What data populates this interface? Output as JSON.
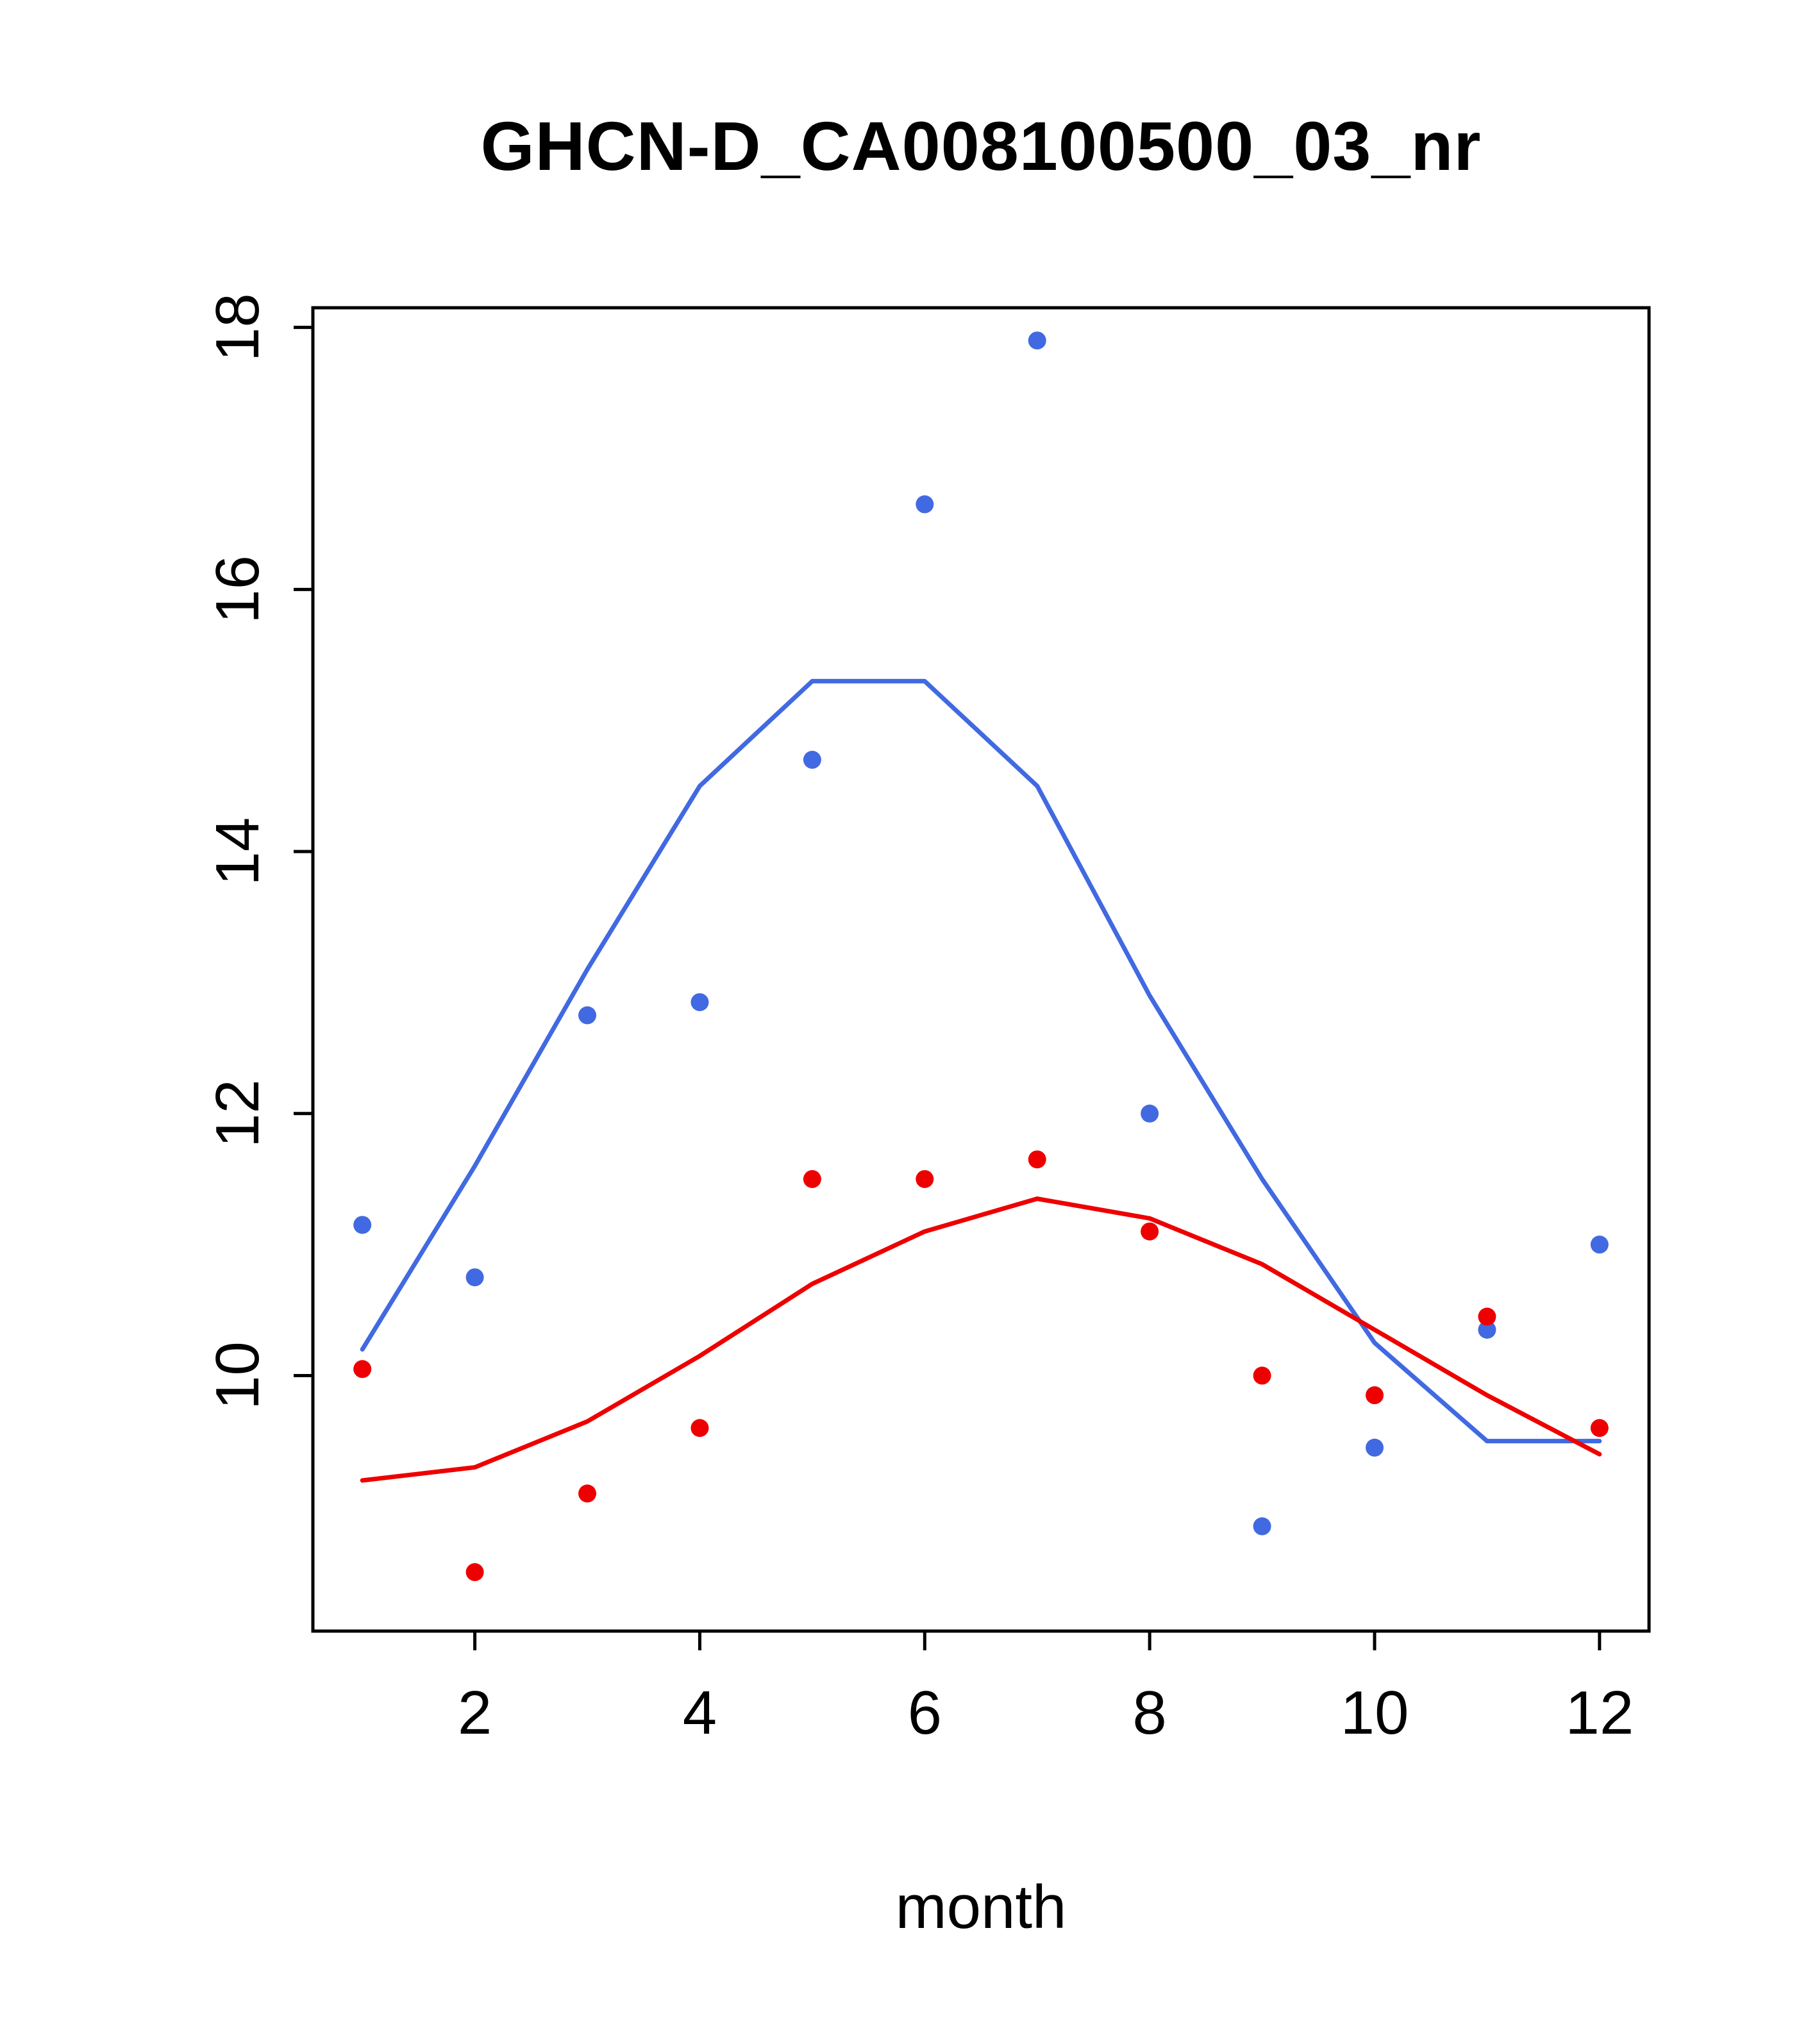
{
  "chart_data": {
    "type": "scatter",
    "title": "GHCN-D_CA008100500_03_nr",
    "xlabel": "month",
    "ylabel": "",
    "x": [
      1,
      2,
      3,
      4,
      5,
      6,
      7,
      8,
      9,
      10,
      11,
      12
    ],
    "x_ticks": [
      "2",
      "4",
      "6",
      "8",
      "10",
      "12"
    ],
    "x_tick_values": [
      2,
      4,
      6,
      8,
      10,
      12
    ],
    "y_ticks": [
      "10",
      "12",
      "14",
      "16",
      "18"
    ],
    "y_tick_values": [
      10,
      12,
      14,
      16,
      18
    ],
    "xlim": [
      0.56,
      12.44
    ],
    "ylim": [
      8.05,
      18.15
    ],
    "grid": false,
    "legend": "none",
    "colors": {
      "blue": "#4169e1",
      "red": "#ee0000"
    },
    "series": [
      {
        "name": "blue-points",
        "kind": "points",
        "color": "blue",
        "values": [
          11.15,
          10.75,
          12.75,
          12.85,
          14.7,
          16.65,
          17.9,
          12.0,
          8.85,
          9.45,
          10.35,
          11.0
        ]
      },
      {
        "name": "red-points",
        "kind": "points",
        "color": "red",
        "values": [
          10.05,
          8.5,
          9.1,
          9.6,
          11.5,
          11.5,
          11.65,
          11.1,
          10.0,
          9.85,
          10.45,
          9.6
        ]
      },
      {
        "name": "blue-smooth-line",
        "kind": "line",
        "color": "blue",
        "values": [
          10.2,
          11.6,
          13.1,
          14.5,
          15.3,
          15.3,
          14.5,
          12.9,
          11.5,
          10.25,
          9.5,
          9.5
        ]
      },
      {
        "name": "red-smooth-line",
        "kind": "line",
        "color": "red",
        "values": [
          9.2,
          9.3,
          9.65,
          10.15,
          10.7,
          11.1,
          11.35,
          11.2,
          10.85,
          10.35,
          9.85,
          9.4
        ]
      }
    ]
  }
}
